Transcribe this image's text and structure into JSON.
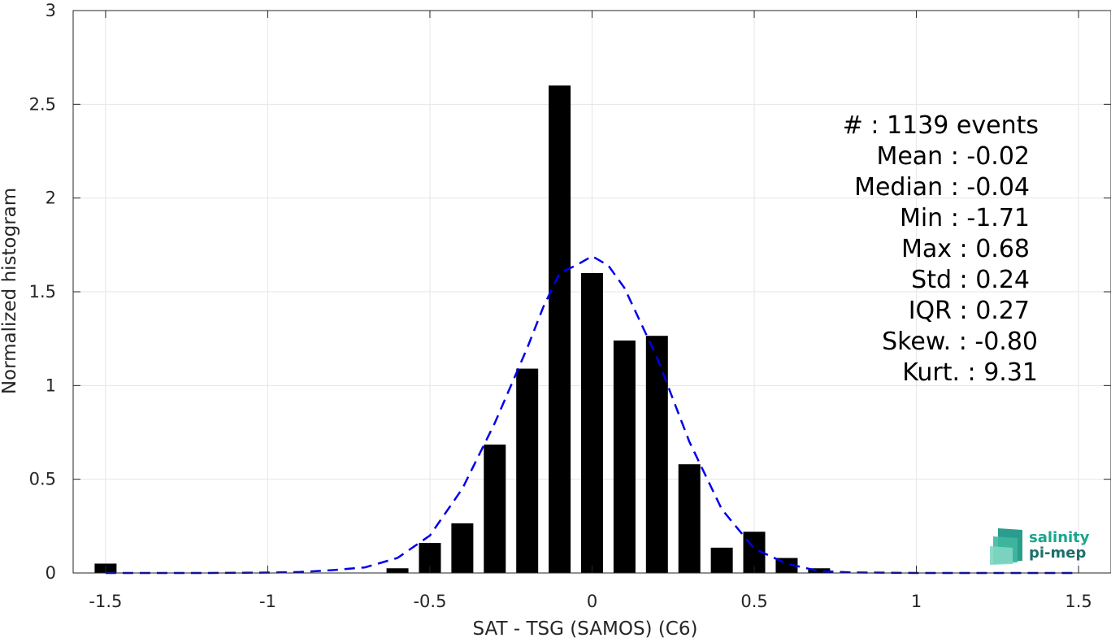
{
  "chart_data": {
    "type": "bar",
    "xlabel": "SAT - TSG (SAMOS) (C6)",
    "ylabel": "Normalized histogram",
    "xlim": [
      -1.6,
      1.6
    ],
    "ylim": [
      0,
      3
    ],
    "xticks": [
      "-1.5",
      "-1",
      "-0.5",
      "0",
      "0.5",
      "1",
      "1.5"
    ],
    "xtick_values": [
      -1.5,
      -1,
      -0.5,
      0,
      0.5,
      1,
      1.5
    ],
    "yticks": [
      "0",
      "0.5",
      "1",
      "1.5",
      "2",
      "2.5",
      "3"
    ],
    "ytick_values": [
      0,
      0.5,
      1,
      1.5,
      2,
      2.5,
      3
    ],
    "grid": true,
    "bar_color": "#000000",
    "bins": [
      {
        "x": -1.5,
        "value": 0.05
      },
      {
        "x": -0.6,
        "value": 0.025
      },
      {
        "x": -0.5,
        "value": 0.16
      },
      {
        "x": -0.4,
        "value": 0.265
      },
      {
        "x": -0.3,
        "value": 0.685
      },
      {
        "x": -0.2,
        "value": 1.09
      },
      {
        "x": -0.1,
        "value": 2.6
      },
      {
        "x": 0.0,
        "value": 1.6
      },
      {
        "x": 0.1,
        "value": 1.24
      },
      {
        "x": 0.2,
        "value": 1.265
      },
      {
        "x": 0.3,
        "value": 0.58
      },
      {
        "x": 0.4,
        "value": 0.135
      },
      {
        "x": 0.5,
        "value": 0.22
      },
      {
        "x": 0.6,
        "value": 0.08
      },
      {
        "x": 0.7,
        "value": 0.025
      }
    ],
    "fit_curve": {
      "color": "#0000ee",
      "style": "dashed",
      "points": [
        {
          "x": -1.5,
          "y": 0
        },
        {
          "x": -1.2,
          "y": 0
        },
        {
          "x": -1.0,
          "y": 0.002
        },
        {
          "x": -0.9,
          "y": 0.005
        },
        {
          "x": -0.8,
          "y": 0.015
        },
        {
          "x": -0.7,
          "y": 0.03
        },
        {
          "x": -0.6,
          "y": 0.08
        },
        {
          "x": -0.5,
          "y": 0.2
        },
        {
          "x": -0.4,
          "y": 0.45
        },
        {
          "x": -0.3,
          "y": 0.8
        },
        {
          "x": -0.2,
          "y": 1.2
        },
        {
          "x": -0.15,
          "y": 1.42
        },
        {
          "x": -0.1,
          "y": 1.6
        },
        {
          "x": -0.05,
          "y": 1.64
        },
        {
          "x": 0.0,
          "y": 1.69
        },
        {
          "x": 0.05,
          "y": 1.64
        },
        {
          "x": 0.1,
          "y": 1.52
        },
        {
          "x": 0.2,
          "y": 1.15
        },
        {
          "x": 0.3,
          "y": 0.7
        },
        {
          "x": 0.4,
          "y": 0.34
        },
        {
          "x": 0.5,
          "y": 0.13
        },
        {
          "x": 0.6,
          "y": 0.05
        },
        {
          "x": 0.7,
          "y": 0.01
        },
        {
          "x": 0.8,
          "y": 0.003
        },
        {
          "x": 1.0,
          "y": 0
        },
        {
          "x": 1.5,
          "y": 0
        }
      ]
    }
  },
  "stats": [
    "#  : 1139 events",
    "Mean : -0.02",
    "Median : -0.04",
    "Min : -1.71",
    "Max : 0.68",
    "Std : 0.24",
    "IQR : 0.27",
    "Skew. : -0.80",
    "Kurt. : 9.31"
  ],
  "logo": {
    "line1": "salinity",
    "line2": "pi-mep",
    "color1": "#1aa58c",
    "color2": "#1d6f6a"
  }
}
